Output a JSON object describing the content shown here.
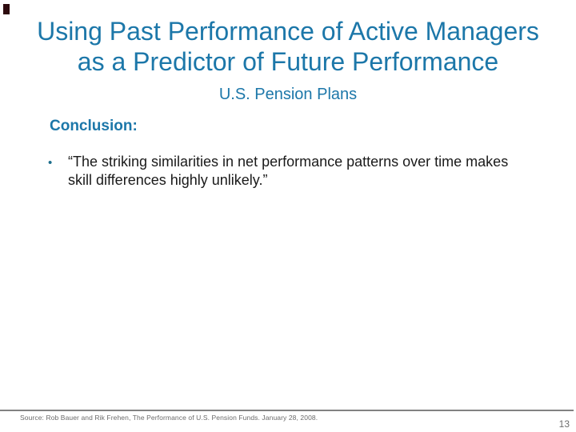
{
  "slide": {
    "title_line1": "Using Past Performance of Active Managers",
    "title_line2": "as a Predictor of Future Performance",
    "subtitle": "U.S. Pension Plans",
    "conclusion_heading": "Conclusion:",
    "bullet": {
      "marker_icon": "•",
      "text": "“The striking similarities in net performance patterns over time makes skill differences highly unlikely.”"
    },
    "footer": {
      "source": "Source: Rob Bauer and Rik Frehen, The Performance of U.S. Pension Funds. January 28, 2008.",
      "page_number": "13"
    },
    "colors": {
      "accent_teal": "#1c77a9",
      "bullet_dot_teal": "#1d6e8c",
      "body_text": "#1a1a1a",
      "footer_gray": "#6b6b6b",
      "divider_gray": "#828282",
      "corner_mark_dark": "#2d0a0e"
    }
  }
}
